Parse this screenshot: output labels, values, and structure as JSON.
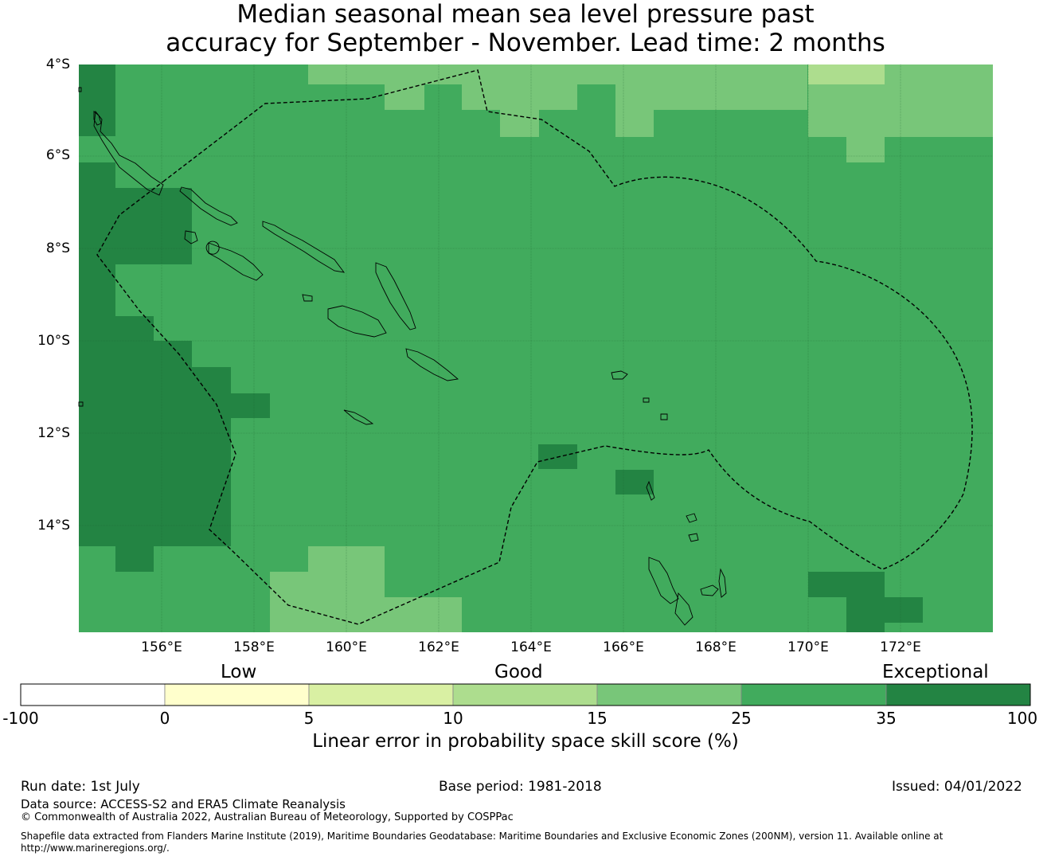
{
  "title": {
    "line1": "Median seasonal mean sea level pressure past",
    "line2": "accuracy for September - November. Lead time: 2 months"
  },
  "map": {
    "lat_labels": [
      "4°S",
      "6°S",
      "8°S",
      "10°S",
      "12°S",
      "14°S"
    ],
    "lon_labels": [
      "156°E",
      "158°E",
      "160°E",
      "162°E",
      "164°E",
      "166°E",
      "168°E",
      "170°E",
      "172°E"
    ],
    "extent": {
      "lon_min": 154.2,
      "lon_max": 174.0,
      "lat_min": -16.3,
      "lat_max": -4.0
    },
    "base_color": "#41ab5d",
    "boundary_color": "#000000"
  },
  "colorbar": {
    "categories": [
      "Low",
      "Good",
      "Exceptional"
    ],
    "ticks": [
      "-100",
      "0",
      "5",
      "10",
      "15",
      "25",
      "35",
      "100"
    ],
    "colors": [
      "#ffffff",
      "#ffffcc",
      "#d9f0a3",
      "#addd8e",
      "#78c679",
      "#41ab5d",
      "#238443"
    ],
    "label": "Linear error in probability space skill score (%)"
  },
  "footer": {
    "run_date": "Run date: 1st July",
    "base_period": "Base period: 1981-2018",
    "issued": "Issued: 04/01/2022",
    "data_source": "Data source: ACCESS-S2 and ERA5 Climate Reanalysis",
    "copyright": "© Commonwealth of Australia 2022, Australian Bureau of Meteorology, Supported by COSPPac",
    "shapefile": "Shapefile data extracted from Flanders Marine Institute (2019), Maritime Boundaries Geodatabase: Maritime Boundaries and Exclusive Economic Zones (200NM), version 11. Available online at http://www.marineregions.org/."
  }
}
